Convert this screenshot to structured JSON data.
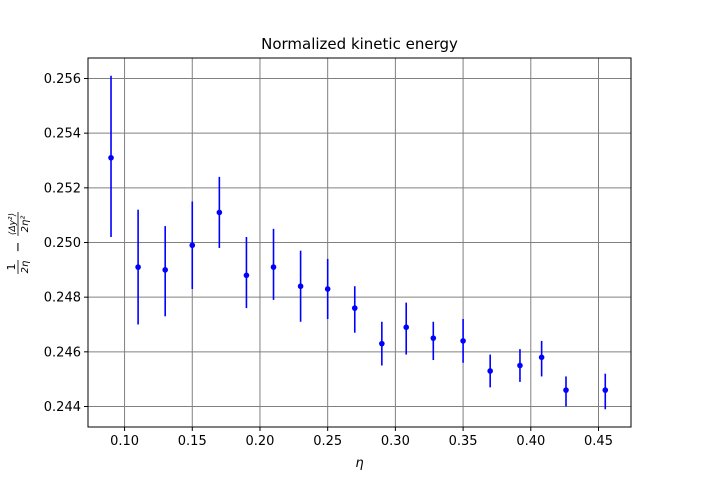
{
  "chart_data": {
    "type": "scatter",
    "title": "Normalized kinetic energy",
    "xlabel": "η",
    "ylabel": {
      "first_fraction": {
        "numerator": "1",
        "denominator": "2η"
      },
      "operator": "−",
      "second_fraction": {
        "numerator": "⟨Δy²⟩",
        "denominator": "2η²"
      }
    },
    "xlim": [
      0.073,
      0.474
    ],
    "ylim": [
      0.24325,
      0.25675
    ],
    "x_ticks": [
      0.1,
      0.15,
      0.2,
      0.25,
      0.3,
      0.35,
      0.4,
      0.45
    ],
    "x_tick_labels": [
      "0.10",
      "0.15",
      "0.20",
      "0.25",
      "0.30",
      "0.35",
      "0.40",
      "0.45"
    ],
    "y_ticks": [
      0.244,
      0.246,
      0.248,
      0.25,
      0.252,
      0.254,
      0.256
    ],
    "y_tick_labels": [
      "0.244",
      "0.246",
      "0.248",
      "0.250",
      "0.252",
      "0.254",
      "0.256"
    ],
    "grid": true,
    "grid_color": "#808080",
    "marker_color": "#0000ff",
    "series": [
      {
        "points": [
          {
            "x": 0.09,
            "y": 0.2531,
            "lo": 0.2502,
            "hi": 0.2561
          },
          {
            "x": 0.11,
            "y": 0.2491,
            "lo": 0.247,
            "hi": 0.2512
          },
          {
            "x": 0.13,
            "y": 0.249,
            "lo": 0.2473,
            "hi": 0.2506
          },
          {
            "x": 0.15,
            "y": 0.2499,
            "lo": 0.2483,
            "hi": 0.2515
          },
          {
            "x": 0.17,
            "y": 0.2511,
            "lo": 0.2498,
            "hi": 0.2524
          },
          {
            "x": 0.19,
            "y": 0.2488,
            "lo": 0.2476,
            "hi": 0.2502
          },
          {
            "x": 0.21,
            "y": 0.2491,
            "lo": 0.2479,
            "hi": 0.2505
          },
          {
            "x": 0.23,
            "y": 0.2484,
            "lo": 0.2471,
            "hi": 0.2497
          },
          {
            "x": 0.25,
            "y": 0.2483,
            "lo": 0.2472,
            "hi": 0.2494
          },
          {
            "x": 0.27,
            "y": 0.2476,
            "lo": 0.2467,
            "hi": 0.2484
          },
          {
            "x": 0.29,
            "y": 0.2463,
            "lo": 0.2455,
            "hi": 0.2471
          },
          {
            "x": 0.308,
            "y": 0.2469,
            "lo": 0.2459,
            "hi": 0.2478
          },
          {
            "x": 0.328,
            "y": 0.2465,
            "lo": 0.2457,
            "hi": 0.2471
          },
          {
            "x": 0.35,
            "y": 0.2464,
            "lo": 0.2456,
            "hi": 0.2472
          },
          {
            "x": 0.37,
            "y": 0.2453,
            "lo": 0.2447,
            "hi": 0.2459
          },
          {
            "x": 0.392,
            "y": 0.2455,
            "lo": 0.2449,
            "hi": 0.2461
          },
          {
            "x": 0.408,
            "y": 0.2458,
            "lo": 0.2451,
            "hi": 0.2464
          },
          {
            "x": 0.426,
            "y": 0.2446,
            "lo": 0.244,
            "hi": 0.2451
          },
          {
            "x": 0.455,
            "y": 0.2446,
            "lo": 0.2439,
            "hi": 0.2452
          }
        ]
      }
    ]
  }
}
